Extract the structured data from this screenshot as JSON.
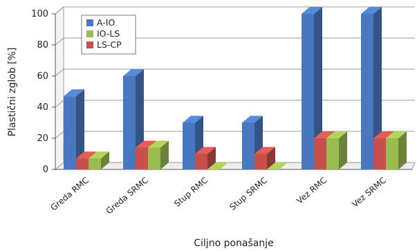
{
  "chart_data": {
    "type": "bar",
    "style": "3d-clustered",
    "categories": [
      "Greda RMC",
      "Greda SRMC",
      "Stup RMC",
      "Stup SRMC",
      "Vez RMC",
      "Vez SRMC"
    ],
    "series": [
      {
        "name": "A-IO",
        "color": "#4a78c0",
        "values": [
          47,
          60,
          30,
          30,
          100,
          100
        ]
      },
      {
        "name": "IO-LS",
        "color": "#99bb4f",
        "values": [
          7,
          14,
          0,
          0,
          20,
          20
        ]
      },
      {
        "name": "LS-CP",
        "color": "#c8504c",
        "values": [
          7,
          14,
          10,
          10,
          20,
          20
        ]
      }
    ],
    "draw_order": [
      "A-IO",
      "LS-CP",
      "IO-LS"
    ],
    "xlabel": "Ciljno ponašanje",
    "ylabel": "Plastični zglob [%]",
    "ylim": [
      0,
      100
    ],
    "yticks": [
      0,
      20,
      40,
      60,
      80,
      100
    ],
    "grid": true,
    "legend_position": "top-left"
  }
}
